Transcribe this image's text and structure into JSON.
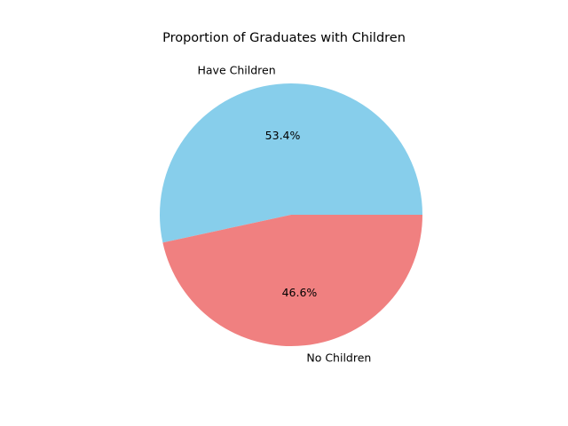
{
  "chart_data": {
    "type": "pie",
    "title": "Proportion of Graduates with Children",
    "categories": [
      "Have Children",
      "No Children"
    ],
    "values": [
      53.4,
      46.6
    ],
    "value_labels": [
      "53.4%",
      "46.6%"
    ],
    "colors": [
      "#87ceeb",
      "#f08080"
    ],
    "start_angle_deg": 0,
    "direction": "counterclockwise",
    "legend": "none"
  }
}
